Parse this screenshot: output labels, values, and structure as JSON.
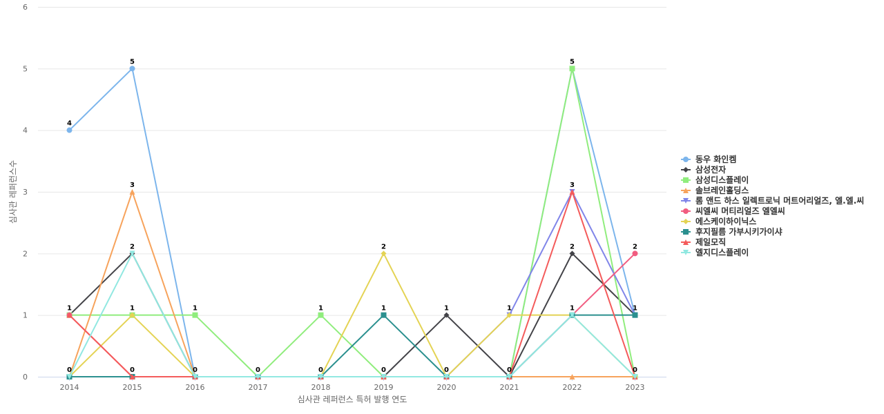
{
  "chart_data": {
    "type": "line",
    "xlabel": "심사관 레퍼런스 특허 발행 연도",
    "ylabel": "심사관 레퍼런스수",
    "ylim": [
      0,
      6
    ],
    "yticks": [
      0,
      1,
      2,
      3,
      4,
      5,
      6
    ],
    "grid": "horizontal",
    "legend_position": "right",
    "categories": [
      "2014",
      "2015",
      "2016",
      "2017",
      "2018",
      "2019",
      "2020",
      "2021",
      "2022",
      "2023"
    ],
    "series": [
      {
        "name": "동우 화인켐",
        "color": "#7cb5ec",
        "marker": "circle",
        "values": [
          4,
          5,
          0,
          0,
          0,
          0,
          0,
          0,
          5,
          1
        ]
      },
      {
        "name": "삼성전자",
        "color": "#434348",
        "marker": "diamond",
        "values": [
          1,
          2,
          0,
          0,
          0,
          0,
          1,
          0,
          2,
          1
        ]
      },
      {
        "name": "삼성디스플레이",
        "color": "#90ed7d",
        "marker": "square",
        "values": [
          1,
          1,
          1,
          0,
          1,
          0,
          0,
          0,
          5,
          0
        ]
      },
      {
        "name": "솔브레인홀딩스",
        "color": "#f7a35c",
        "marker": "triangle",
        "values": [
          0,
          3,
          0,
          0,
          0,
          0,
          0,
          0,
          0,
          0
        ]
      },
      {
        "name": "롬 앤드 하스 일렉트로닉 머트어리얼즈, 엘.엘.씨",
        "color": "#8085e9",
        "marker": "triangle-down",
        "values": [
          0,
          0,
          0,
          0,
          0,
          0,
          0,
          1,
          3,
          1
        ]
      },
      {
        "name": "씨엘씨 머티리얼즈 엘엘씨",
        "color": "#f15c80",
        "marker": "circle",
        "values": [
          1,
          0,
          0,
          0,
          0,
          0,
          0,
          0,
          1,
          2
        ]
      },
      {
        "name": "에스케이하이닉스",
        "color": "#e4d354",
        "marker": "diamond",
        "values": [
          0,
          1,
          0,
          0,
          0,
          2,
          0,
          1,
          1,
          0
        ]
      },
      {
        "name": "후지필름 가부시키가이샤",
        "color": "#2b908f",
        "marker": "square",
        "values": [
          0,
          0,
          0,
          0,
          0,
          1,
          0,
          0,
          1,
          1
        ]
      },
      {
        "name": "제일모직",
        "color": "#f45b5b",
        "marker": "triangle",
        "values": [
          1,
          0,
          0,
          0,
          0,
          0,
          0,
          0,
          3,
          0
        ]
      },
      {
        "name": "엘지디스플레이",
        "color": "#91e8e1",
        "marker": "triangle-down",
        "values": [
          0,
          2,
          0,
          0,
          0,
          0,
          0,
          0,
          1,
          0
        ]
      }
    ],
    "data_labels": [
      {
        "category": "2014",
        "max": 4,
        "min": 0,
        "others": [
          1
        ]
      },
      {
        "category": "2015",
        "max": 5,
        "min": 0,
        "others": [
          3,
          2,
          1
        ]
      },
      {
        "category": "2016",
        "max": 1,
        "min": 0,
        "others": []
      },
      {
        "category": "2017",
        "max": 0,
        "min": null,
        "others": []
      },
      {
        "category": "2018",
        "max": 1,
        "min": 0,
        "others": []
      },
      {
        "category": "2019",
        "max": 2,
        "min": 0,
        "others": [
          1
        ]
      },
      {
        "category": "2020",
        "max": 1,
        "min": 0,
        "others": []
      },
      {
        "category": "2021",
        "max": 1,
        "min": 0,
        "others": []
      },
      {
        "category": "2022",
        "max": 5,
        "min": null,
        "others": [
          3,
          2,
          1
        ]
      },
      {
        "category": "2023",
        "max": 2,
        "min": 0,
        "others": [
          1
        ]
      }
    ]
  }
}
